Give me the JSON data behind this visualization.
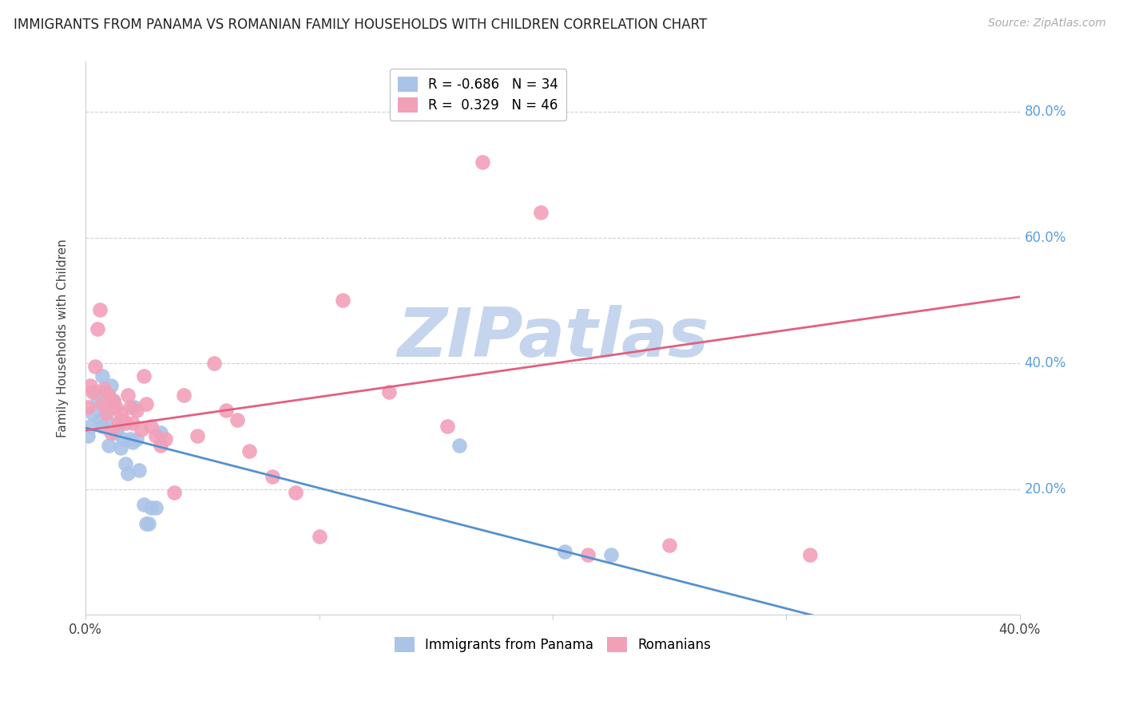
{
  "title": "IMMIGRANTS FROM PANAMA VS ROMANIAN FAMILY HOUSEHOLDS WITH CHILDREN CORRELATION CHART",
  "source": "Source: ZipAtlas.com",
  "ylabel": "Family Households with Children",
  "legend_labels_bottom": [
    "Immigrants from Panama",
    "Romanians"
  ],
  "blue_color": "#aac4e8",
  "pink_color": "#f2a0b8",
  "blue_line_color": "#5590d0",
  "pink_line_color": "#e06080",
  "r_blue": -0.686,
  "n_blue": 34,
  "r_pink": 0.329,
  "n_pink": 46,
  "xlim": [
    0.0,
    0.4
  ],
  "ylim": [
    0.0,
    0.88
  ],
  "grid_color": "#d0d0d0",
  "watermark": "ZIPatlas",
  "watermark_color": "#c5d5ee",
  "blue_scatter_x": [
    0.001,
    0.002,
    0.003,
    0.004,
    0.005,
    0.006,
    0.007,
    0.007,
    0.008,
    0.009,
    0.01,
    0.01,
    0.011,
    0.012,
    0.013,
    0.014,
    0.015,
    0.016,
    0.017,
    0.018,
    0.019,
    0.02,
    0.021,
    0.022,
    0.023,
    0.025,
    0.026,
    0.027,
    0.028,
    0.03,
    0.032,
    0.16,
    0.205,
    0.225
  ],
  "blue_scatter_y": [
    0.285,
    0.3,
    0.32,
    0.355,
    0.34,
    0.31,
    0.38,
    0.3,
    0.355,
    0.325,
    0.305,
    0.27,
    0.365,
    0.34,
    0.29,
    0.3,
    0.265,
    0.28,
    0.24,
    0.225,
    0.28,
    0.275,
    0.33,
    0.28,
    0.23,
    0.175,
    0.145,
    0.145,
    0.17,
    0.17,
    0.29,
    0.27,
    0.1,
    0.095
  ],
  "pink_scatter_x": [
    0.001,
    0.002,
    0.003,
    0.004,
    0.005,
    0.006,
    0.007,
    0.008,
    0.009,
    0.01,
    0.011,
    0.012,
    0.013,
    0.014,
    0.015,
    0.016,
    0.017,
    0.018,
    0.019,
    0.02,
    0.022,
    0.024,
    0.025,
    0.026,
    0.028,
    0.03,
    0.032,
    0.034,
    0.038,
    0.042,
    0.048,
    0.055,
    0.06,
    0.065,
    0.07,
    0.08,
    0.09,
    0.1,
    0.11,
    0.13,
    0.155,
    0.17,
    0.195,
    0.215,
    0.25,
    0.31
  ],
  "pink_scatter_y": [
    0.33,
    0.365,
    0.355,
    0.395,
    0.455,
    0.485,
    0.335,
    0.36,
    0.32,
    0.35,
    0.29,
    0.34,
    0.33,
    0.305,
    0.32,
    0.31,
    0.305,
    0.35,
    0.33,
    0.305,
    0.325,
    0.295,
    0.38,
    0.335,
    0.3,
    0.285,
    0.27,
    0.28,
    0.195,
    0.35,
    0.285,
    0.4,
    0.325,
    0.31,
    0.26,
    0.22,
    0.195,
    0.125,
    0.5,
    0.355,
    0.3,
    0.72,
    0.64,
    0.095,
    0.11,
    0.095
  ]
}
